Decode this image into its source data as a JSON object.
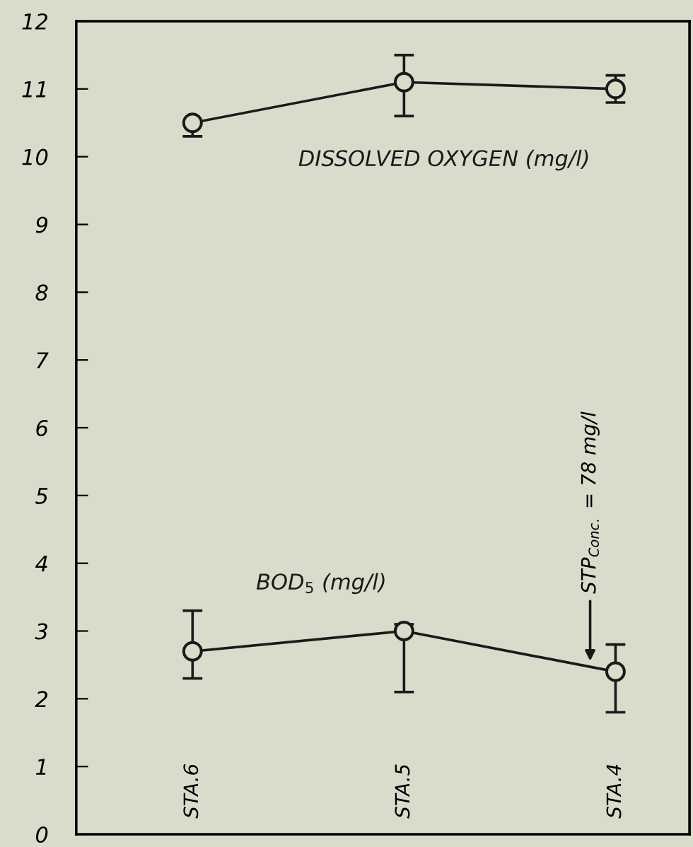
{
  "chart_data": {
    "type": "line",
    "categories": [
      "STA.6",
      "STA.5",
      "STA.4"
    ],
    "series": [
      {
        "name": "DISSOLVED OXYGEN (mg/l)",
        "color": "#1a1a1a",
        "values": [
          10.5,
          11.1,
          11.0
        ],
        "errors": [
          [
            10.3,
            10.5
          ],
          [
            10.6,
            11.5
          ],
          [
            10.8,
            11.2
          ]
        ]
      },
      {
        "name": "BOD$_{5}$ (mg/l)",
        "color": "#1a1a1a",
        "values": [
          2.7,
          3.0,
          2.4
        ],
        "errors": [
          [
            2.3,
            3.3
          ],
          [
            2.1,
            3.1
          ],
          [
            1.8,
            2.8
          ]
        ]
      }
    ],
    "annotations": [
      "STP$_{Conc.}$ = 78 mg/l"
    ],
    "ylim": [
      0,
      12
    ],
    "yticks": [
      0,
      1,
      2,
      3,
      4,
      5,
      6,
      7,
      8,
      9,
      10,
      11,
      12
    ],
    "marker": "circle",
    "line_style": "solid",
    "grid": false,
    "legend": false
  }
}
